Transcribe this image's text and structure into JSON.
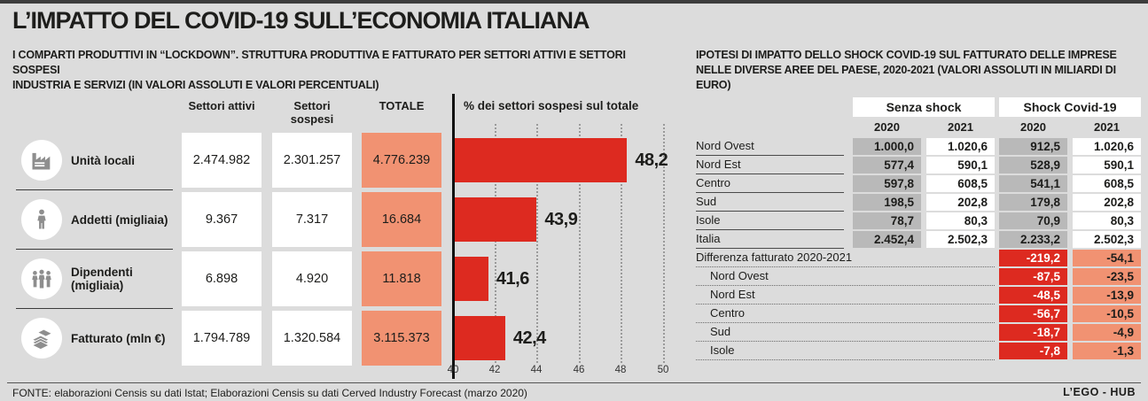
{
  "page": {
    "title": "L’IMPATTO DEL COVID-19 SULL’ECONOMIA ITALIANA",
    "source": "FONTE: elaborazioni Censis su dati Istat; Elaborazioni Censis su dati Cerved Industry Forecast (marzo 2020)",
    "brand": "L’EGO - HUB",
    "colors": {
      "background": "#dcdcdc",
      "accent_red": "#dd2a20",
      "accent_salmon": "#f19272",
      "cell_gray": "#b9b9b9"
    }
  },
  "left_section": {
    "subtitle_line1": "I COMPARTI PRODUTTIVI IN “LOCKDOWN”. STRUTTURA PRODUTTIVA E FATTURATO PER SETTORI ATTIVI E SETTORI SOSPESI",
    "subtitle_line2": "INDUSTRIA E SERVIZI (IN VALORI ASSOLUTI E VALORI PERCENTUALI)",
    "columns": {
      "attivi": "Settori attivi",
      "sospesi": "Settori sospesi",
      "totale": "TOTALE"
    },
    "rows": [
      {
        "icon": "factory-icon",
        "label": "Unità locali",
        "attivi": "2.474.982",
        "sospesi": "2.301.257",
        "totale": "4.776.239"
      },
      {
        "icon": "worker-icon",
        "label": "Addetti (migliaia)",
        "attivi": "9.367",
        "sospesi": "7.317",
        "totale": "16.684"
      },
      {
        "icon": "people-icon",
        "label": "Dipendenti (migliaia)",
        "attivi": "6.898",
        "sospesi": "4.920",
        "totale": "11.818"
      },
      {
        "icon": "banknotes-icon",
        "label": "Fatturato (mln €)",
        "attivi": "1.794.789",
        "sospesi": "1.320.584",
        "totale": "3.115.373"
      }
    ]
  },
  "chart_data": {
    "type": "bar",
    "orientation": "horizontal",
    "title": "% dei settori sospesi sul totale",
    "categories": [
      "Unità locali",
      "Addetti (migliaia)",
      "Dipendenti (migliaia)",
      "Fatturato (mln €)"
    ],
    "values": [
      48.2,
      43.9,
      41.6,
      42.4
    ],
    "labels": [
      "48,2",
      "43,9",
      "41,6",
      "42,4"
    ],
    "xlim": [
      40,
      50
    ],
    "ticks": [
      "40",
      "42",
      "44",
      "46",
      "48",
      "50"
    ],
    "grid": "dotted-vertical",
    "bar_color": "#dd2a20"
  },
  "right_section": {
    "subtitle_line1": "IPOTESI DI IMPATTO DELLO SHOCK COVID-19 SUL FATTURATO DELLE IMPRESE",
    "subtitle_line2": "NELLE DIVERSE AREE DEL PAESE, 2020-2021 (VALORI ASSOLUTI IN MILIARDI DI EURO)",
    "group_headers": {
      "no_shock": "Senza shock",
      "shock": "Shock Covid-19"
    },
    "year_headers": [
      "2020",
      "2021",
      "2020",
      "2021"
    ],
    "rows": [
      {
        "label": "Nord Ovest",
        "values": [
          "1.000,0",
          "1.020,6",
          "912,5",
          "1.020,6"
        ]
      },
      {
        "label": "Nord Est",
        "values": [
          "577,4",
          "590,1",
          "528,9",
          "590,1"
        ]
      },
      {
        "label": "Centro",
        "values": [
          "597,8",
          "608,5",
          "541,1",
          "608,5"
        ]
      },
      {
        "label": "Sud",
        "values": [
          "198,5",
          "202,8",
          "179,8",
          "202,8"
        ]
      },
      {
        "label": "Isole",
        "values": [
          "78,7",
          "80,3",
          "70,9",
          "80,3"
        ]
      },
      {
        "label": "Italia",
        "values": [
          "2.452,4",
          "2.502,3",
          "2.233,2",
          "2.502,3"
        ]
      }
    ],
    "diff_rows": [
      {
        "label": "Differenza fatturato 2020-2021",
        "values": [
          "-219,2",
          "-54,1"
        ]
      },
      {
        "label": "Nord Ovest",
        "values": [
          "-87,5",
          "-23,5"
        ]
      },
      {
        "label": "Nord Est",
        "values": [
          "-48,5",
          "-13,9"
        ]
      },
      {
        "label": "Centro",
        "values": [
          "-56,7",
          "-10,5"
        ]
      },
      {
        "label": "Sud",
        "values": [
          "-18,7",
          "-4,9"
        ]
      },
      {
        "label": "Isole",
        "values": [
          "-7,8",
          "-1,3"
        ]
      }
    ]
  }
}
